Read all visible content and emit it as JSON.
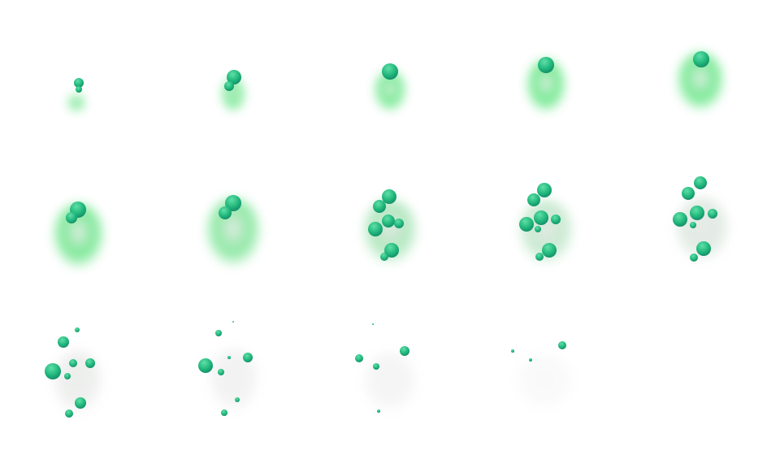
{
  "sprite_sheet": {
    "frame_count": 14,
    "columns": 5,
    "rows": 3,
    "colors": {
      "bubble_light": "#5fe0a8",
      "bubble": "#1fb57a",
      "bubble_dark": "#0b6e5e",
      "smoke_green": "#5ee67f",
      "smoke_gray": "#d9dcd9",
      "background": "#ffffff"
    }
  }
}
